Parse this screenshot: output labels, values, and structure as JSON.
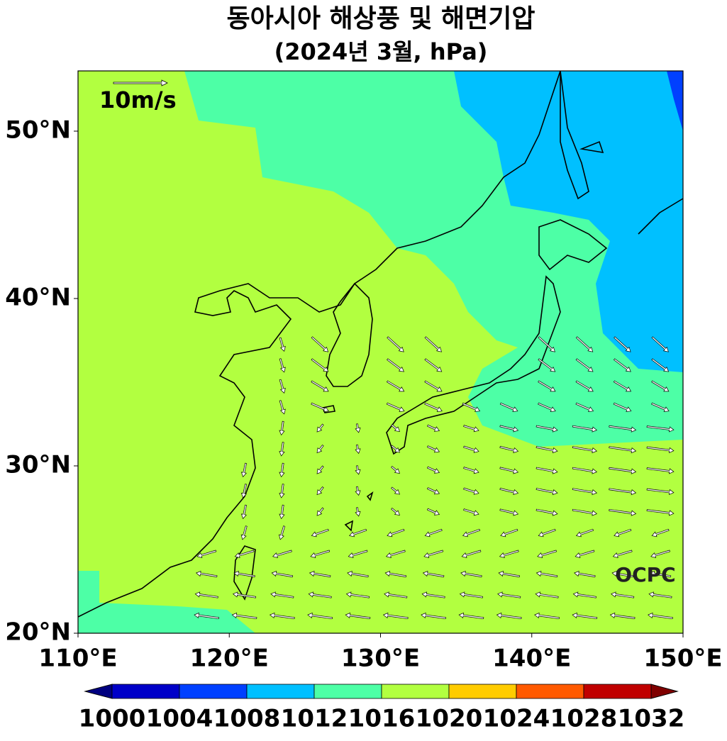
{
  "title": "동아시아 해상풍 및 해면기압",
  "subtitle": "(2024년 3월, hPa)",
  "map": {
    "xlim": [
      110,
      150
    ],
    "ylim": [
      20,
      53.6
    ],
    "xticks": [
      {
        "value": 110,
        "label": "110°E"
      },
      {
        "value": 120,
        "label": "120°E"
      },
      {
        "value": 130,
        "label": "130°E"
      },
      {
        "value": 140,
        "label": "140°E"
      },
      {
        "value": 150,
        "label": "150°E"
      }
    ],
    "yticks": [
      {
        "value": 20,
        "label": "20°N"
      },
      {
        "value": 30,
        "label": "30°N"
      },
      {
        "value": 40,
        "label": "40°N"
      },
      {
        "value": 50,
        "label": "50°N"
      }
    ],
    "reference_vector_label": "10m/s",
    "watermark": "OCPC"
  },
  "colorbar": {
    "levels": [
      1000,
      1004,
      1008,
      1012,
      1016,
      1020,
      1024,
      1028,
      1032
    ],
    "colors": [
      "#0000c8",
      "#0040ff",
      "#00c0ff",
      "#4dffa6",
      "#b2ff40",
      "#ffcc00",
      "#ff5a00",
      "#c00000"
    ],
    "extend_colors": [
      "#000080",
      "#800000"
    ]
  }
}
